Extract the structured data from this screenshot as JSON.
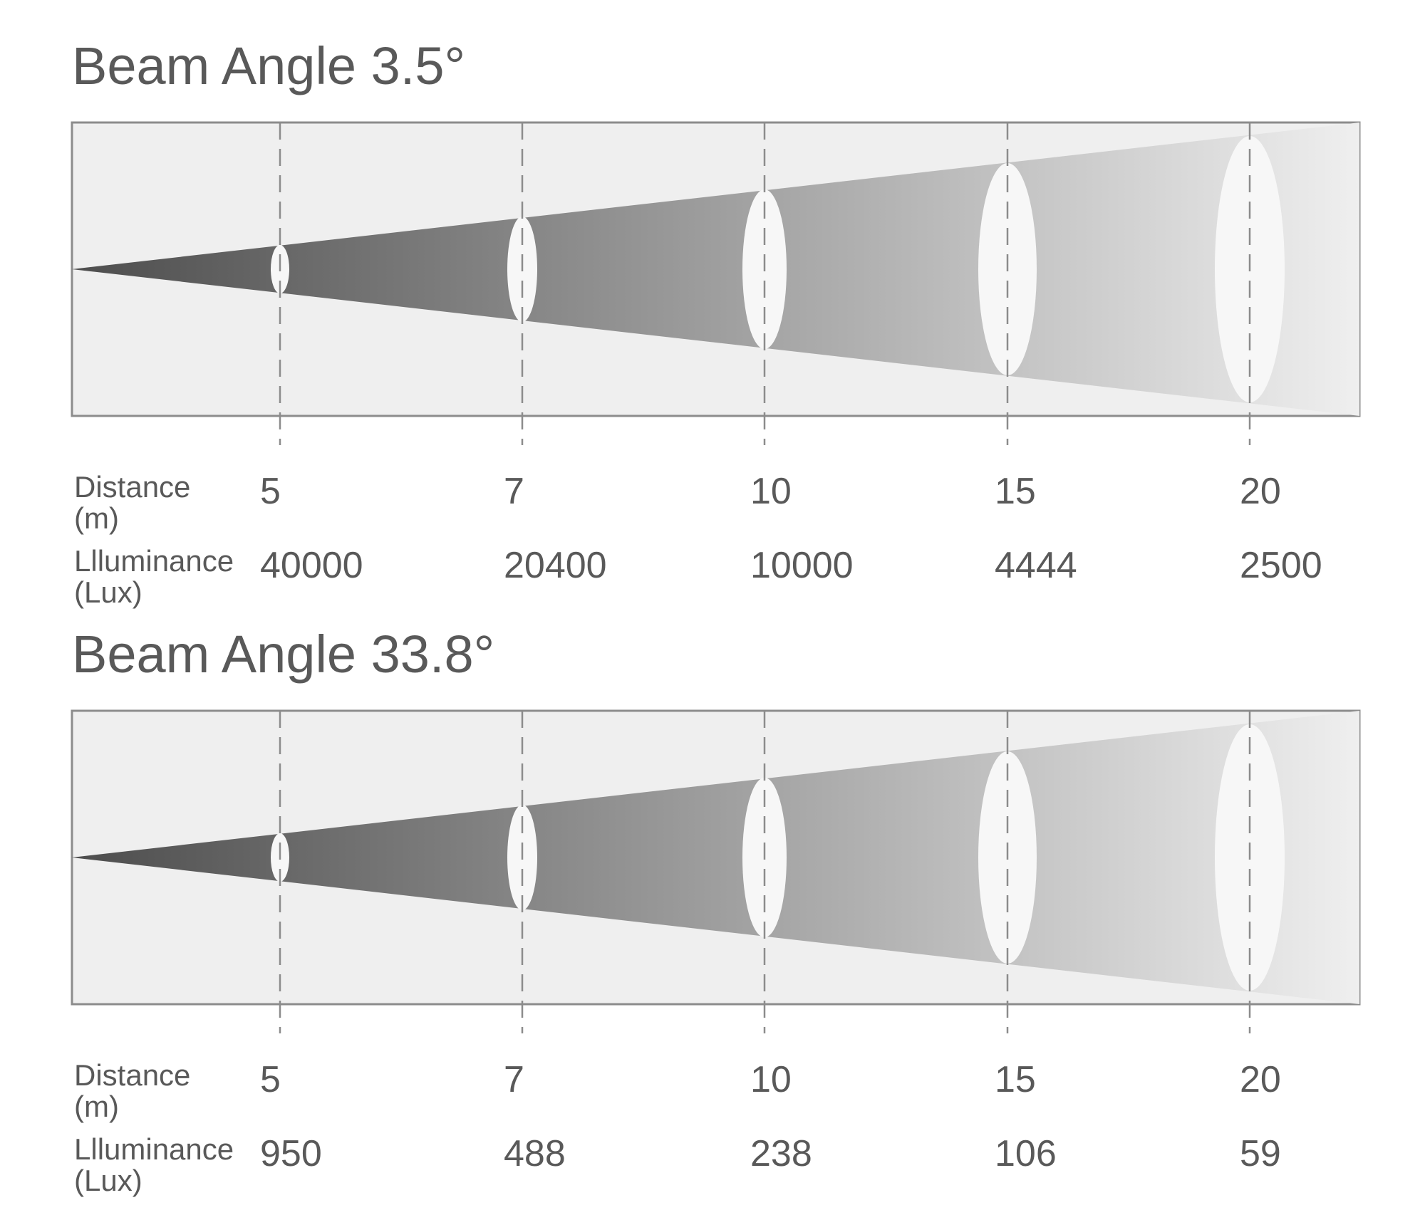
{
  "colors": {
    "panel_fill": "#efefef",
    "panel_border": "#8c8c8c",
    "beam_dark": "#4d4d4d",
    "beam_light": "#efefef",
    "spot_fill": "#f7f7f7",
    "guide_line": "#8c8c8c",
    "text": "#595959"
  },
  "labels": {
    "distance_line1": "Distance",
    "distance_line2": "(m)",
    "illuminance_line1": "Llluminance",
    "illuminance_line2": "(Lux)"
  },
  "chart_data": [
    {
      "type": "table",
      "title": "Beam Angle 3.5°",
      "distance_m": [
        "5",
        "7",
        "10",
        "15",
        "20"
      ],
      "illuminance_lux": [
        "40000",
        "20400",
        "10000",
        "4444",
        "2500"
      ]
    },
    {
      "type": "table",
      "title": "Beam Angle 33.8°",
      "distance_m": [
        "5",
        "7",
        "10",
        "15",
        "20"
      ],
      "illuminance_lux": [
        "950",
        "488",
        "238",
        "106",
        "59"
      ]
    }
  ]
}
